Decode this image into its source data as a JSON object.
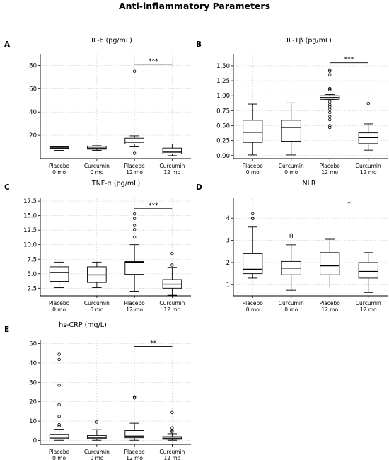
{
  "figure": {
    "title": "Anti-inflammatory Parameters"
  },
  "chart_data": [
    {
      "panel": "A",
      "type": "box",
      "title": "IL-6 (pg/mL)",
      "categories": [
        "Placebo\n0 mo",
        "Curcumin\n0 mo",
        "Placebo\n12 mo",
        "Curcumin\n12 mo"
      ],
      "ylim": [
        0,
        90
      ],
      "yticks": [
        20,
        40,
        60,
        80
      ],
      "grid": true,
      "boxes": [
        {
          "whislo": 7,
          "q1": 8.5,
          "med": 9.2,
          "q3": 10,
          "whishi": 10.5,
          "fliers": []
        },
        {
          "whislo": 7,
          "q1": 8,
          "med": 9,
          "q3": 10.5,
          "whishi": 11,
          "fliers": []
        },
        {
          "whislo": 10,
          "q1": 12.5,
          "med": 14,
          "q3": 17.5,
          "whishi": 19.5,
          "fliers": [
            75,
            4.5
          ]
        },
        {
          "whislo": 2.5,
          "q1": 4,
          "med": 5.5,
          "q3": 9,
          "whishi": 12.5,
          "fliers": []
        }
      ],
      "significance": {
        "from": 2,
        "to": 3,
        "y": 81,
        "label": "***"
      }
    },
    {
      "panel": "B",
      "type": "box",
      "title": "IL-1β (pg/mL)",
      "categories": [
        "Placebo\n0 mo",
        "Curcumin\n0 mo",
        "Placebo\n12 mo",
        "Curcumin\n12 mo"
      ],
      "ylim": [
        -0.05,
        1.7
      ],
      "yticks": [
        0.0,
        0.25,
        0.5,
        0.75,
        1.0,
        1.25,
        1.5
      ],
      "grid": true,
      "boxes": [
        {
          "whislo": 0.01,
          "q1": 0.22,
          "med": 0.39,
          "q3": 0.59,
          "whishi": 0.86,
          "fliers": []
        },
        {
          "whislo": 0.01,
          "q1": 0.24,
          "med": 0.47,
          "q3": 0.59,
          "whishi": 0.88,
          "fliers": []
        },
        {
          "whislo": 0.93,
          "q1": 0.94,
          "med": 0.97,
          "q3": 1.0,
          "whishi": 1.02,
          "fliers": [
            1.43,
            1.41,
            1.35,
            1.12,
            1.1,
            0.9,
            0.85,
            0.82,
            0.77,
            0.72,
            0.65,
            0.6,
            0.5,
            0.47
          ]
        },
        {
          "whislo": 0.09,
          "q1": 0.2,
          "med": 0.3,
          "q3": 0.38,
          "whishi": 0.53,
          "fliers": [
            0.87
          ]
        }
      ],
      "significance": {
        "from": 2,
        "to": 3,
        "y": 1.55,
        "label": "***"
      }
    },
    {
      "panel": "C",
      "type": "box",
      "title": "TNF-α (pg/mL)",
      "categories": [
        "Placebo\n0 mo",
        "Curcumin\n0 mo",
        "Placebo\n12 mo",
        "Curcumin\n12 mo"
      ],
      "ylim": [
        1.2,
        18
      ],
      "yticks": [
        2.5,
        5.0,
        7.5,
        10.0,
        12.5,
        15.0,
        17.5
      ],
      "grid": true,
      "boxes": [
        {
          "whislo": 2.6,
          "q1": 3.7,
          "med": 5.2,
          "q3": 6.2,
          "whishi": 7.0,
          "fliers": []
        },
        {
          "whislo": 2.6,
          "q1": 3.5,
          "med": 4.8,
          "q3": 6.2,
          "whishi": 7.0,
          "fliers": []
        },
        {
          "whislo": 2.0,
          "q1": 4.9,
          "med": 7.0,
          "q3": 7.1,
          "whishi": 10.0,
          "fliers": [
            15.3,
            14.5,
            13.3,
            12.6,
            11.3
          ]
        },
        {
          "whislo": 1.3,
          "q1": 2.5,
          "med": 3.2,
          "q3": 4.0,
          "whishi": 6.1,
          "fliers": [
            8.5,
            6.5
          ]
        }
      ],
      "significance": {
        "from": 2,
        "to": 3,
        "y": 16.2,
        "label": "***"
      }
    },
    {
      "panel": "D",
      "type": "box",
      "title": "NLR",
      "categories": [
        "Placebo\n0 mo",
        "Curcumin\n0 mo",
        "Placebo\n12 mo",
        "Curcumin\n12 mo"
      ],
      "ylim": [
        0.5,
        4.9
      ],
      "yticks": [
        1,
        2,
        3,
        4
      ],
      "grid": true,
      "boxes": [
        {
          "whislo": 1.3,
          "q1": 1.5,
          "med": 1.7,
          "q3": 2.4,
          "whishi": 3.6,
          "fliers": [
            4.2,
            4.0,
            3.98
          ]
        },
        {
          "whislo": 0.75,
          "q1": 1.45,
          "med": 1.75,
          "q3": 2.05,
          "whishi": 2.8,
          "fliers": [
            3.25,
            3.15
          ]
        },
        {
          "whislo": 0.9,
          "q1": 1.45,
          "med": 1.85,
          "q3": 2.45,
          "whishi": 3.05,
          "fliers": []
        },
        {
          "whislo": 0.65,
          "q1": 1.3,
          "med": 1.6,
          "q3": 2.0,
          "whishi": 2.45,
          "fliers": []
        }
      ],
      "significance": {
        "from": 2,
        "to": 3,
        "y": 4.5,
        "label": "*"
      }
    },
    {
      "panel": "E",
      "type": "box",
      "title": "hs-CRP (mg/L)",
      "categories": [
        "Placebo\n0 mo",
        "Curcumin\n0 mo",
        "Placebo\n12 mo",
        "Curcumin\n12 mo"
      ],
      "ylim": [
        -2,
        52
      ],
      "yticks": [
        0,
        10,
        20,
        30,
        40,
        50
      ],
      "grid": true,
      "boxes": [
        {
          "whislo": 0.1,
          "q1": 1.0,
          "med": 1.7,
          "q3": 3.2,
          "whishi": 5.8,
          "fliers": [
            44.5,
            41.8,
            28.5,
            18.5,
            12.5,
            8.2,
            7.5
          ]
        },
        {
          "whislo": 0.1,
          "q1": 0.8,
          "med": 1.3,
          "q3": 2.6,
          "whishi": 5.6,
          "fliers": [
            9.5
          ]
        },
        {
          "whislo": 0.1,
          "q1": 1.4,
          "med": 2.3,
          "q3": 5.1,
          "whishi": 8.9,
          "fliers": [
            22.5,
            22.0
          ]
        },
        {
          "whislo": 0.1,
          "q1": 0.6,
          "med": 1.2,
          "q3": 2.0,
          "whishi": 3.5,
          "fliers": [
            14.5,
            6.5,
            5.2,
            4.5
          ]
        }
      ],
      "significance": {
        "from": 2,
        "to": 3,
        "y": 48.5,
        "label": "**"
      }
    }
  ]
}
